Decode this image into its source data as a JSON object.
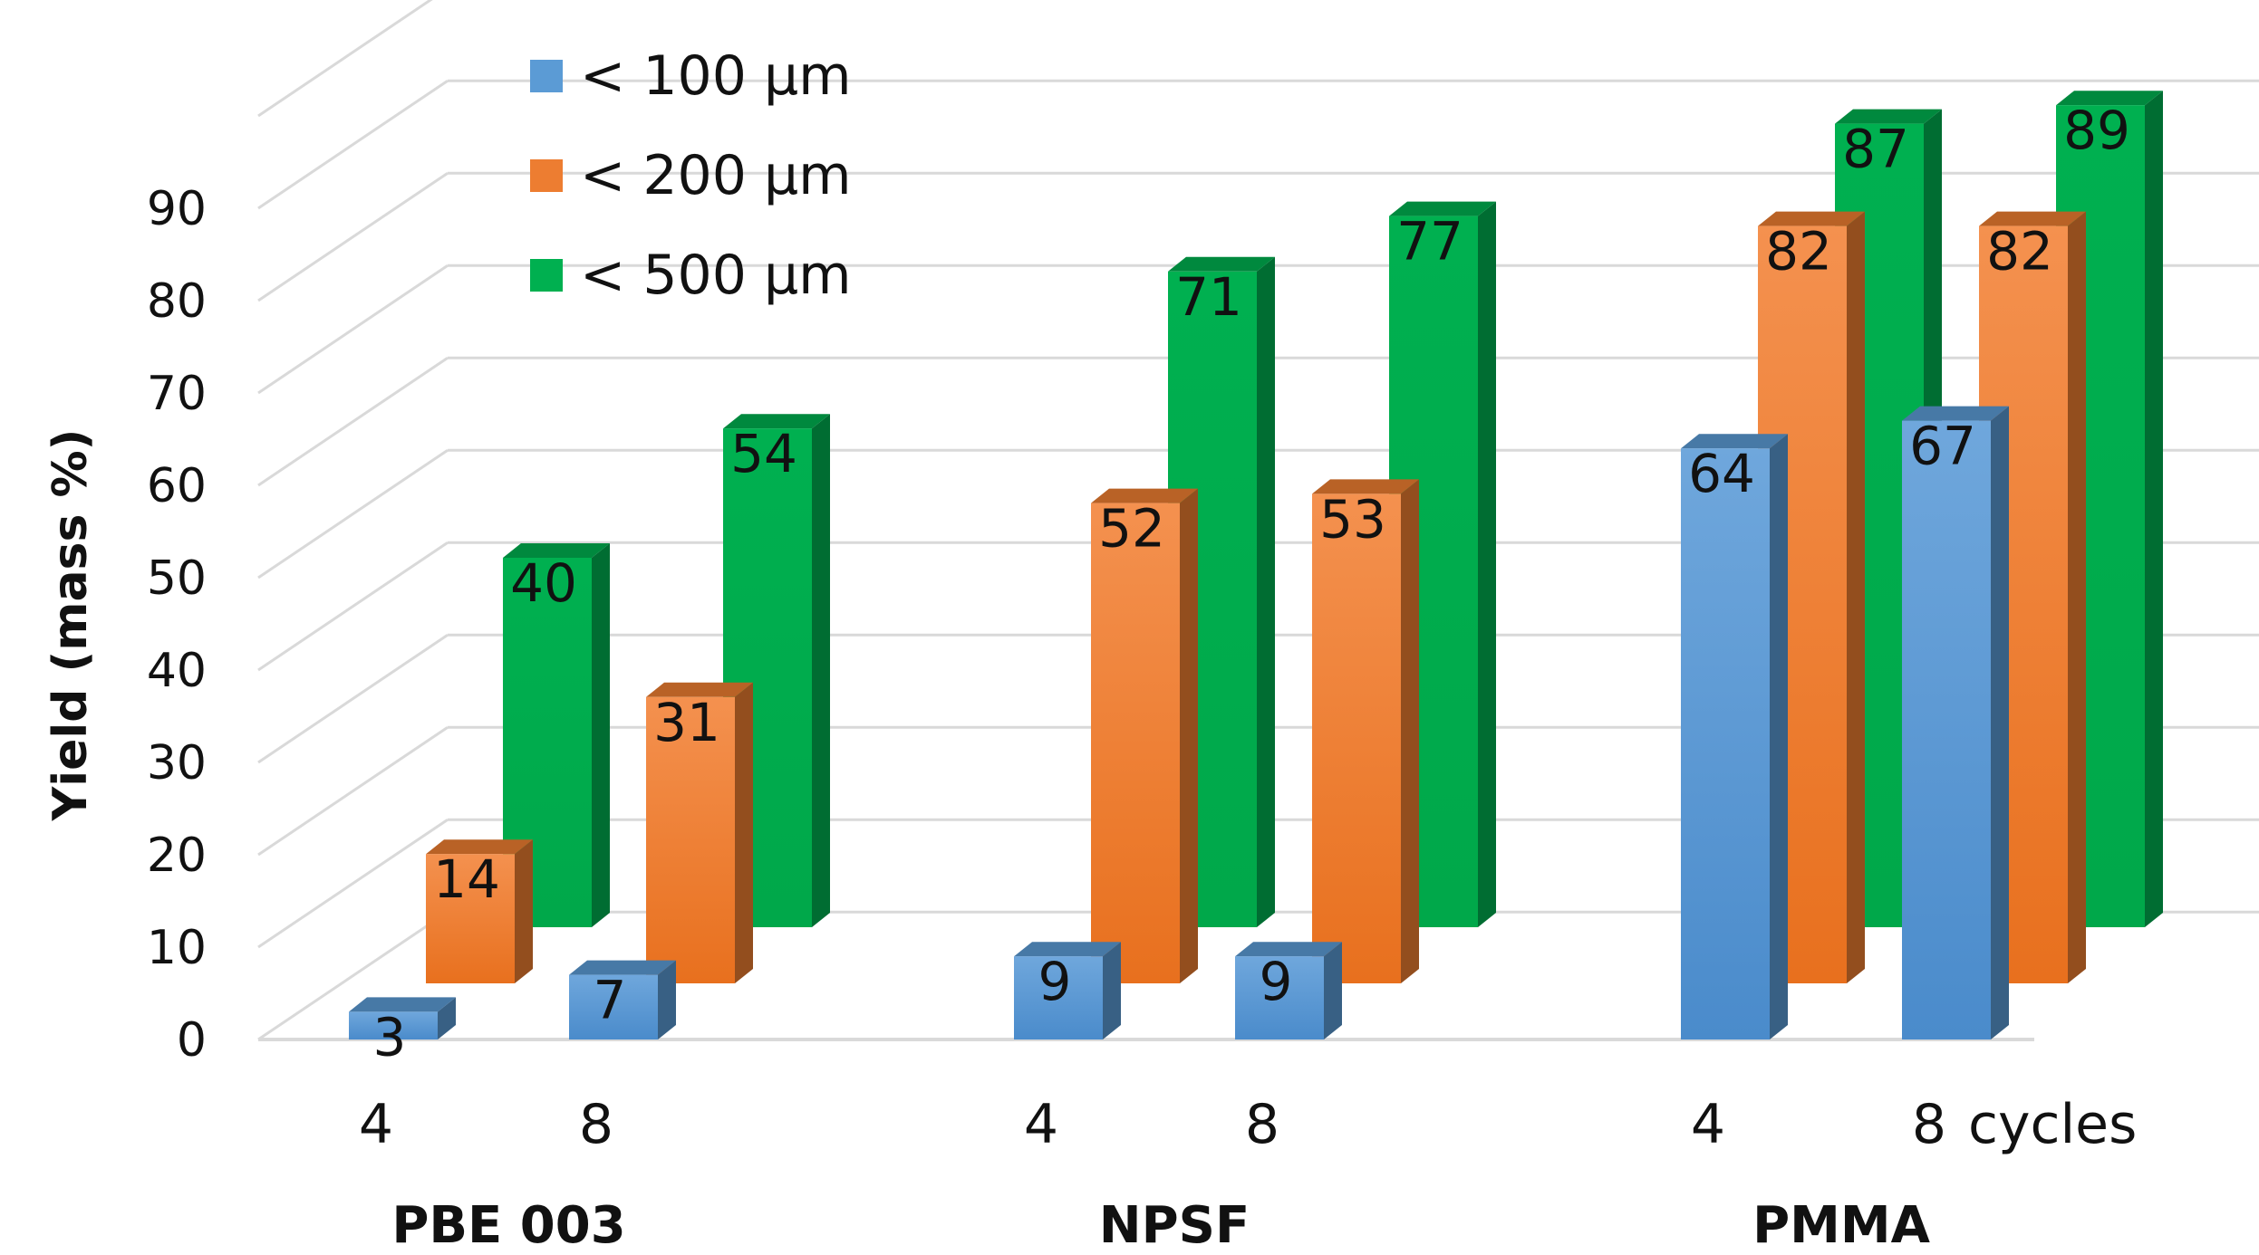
{
  "chart_data": {
    "type": "bar",
    "title": "",
    "ylabel": "Yield (mass %)",
    "ylim": [
      0,
      90
    ],
    "yticks": [
      0,
      10,
      20,
      30,
      40,
      50,
      60,
      70,
      80,
      90
    ],
    "grid": true,
    "legend_position": "top-left",
    "cycles_label": "cycles",
    "groups": [
      {
        "name": "PBE 003",
        "cycles": [
          "4",
          "8"
        ]
      },
      {
        "name": "NPSF",
        "cycles": [
          "4",
          "8"
        ]
      },
      {
        "name": "PMMA",
        "cycles": [
          "4",
          "8"
        ]
      }
    ],
    "series": [
      {
        "name": "< 100 µm",
        "color": "#5b9bd5",
        "values": [
          3,
          7,
          9,
          9,
          64,
          67
        ]
      },
      {
        "name": "< 200 µm",
        "color": "#ed7d31",
        "values": [
          14,
          31,
          52,
          53,
          82,
          82
        ]
      },
      {
        "name": "< 500 µm",
        "color": "#00b050",
        "values": [
          40,
          54,
          71,
          77,
          87,
          89
        ]
      }
    ]
  }
}
